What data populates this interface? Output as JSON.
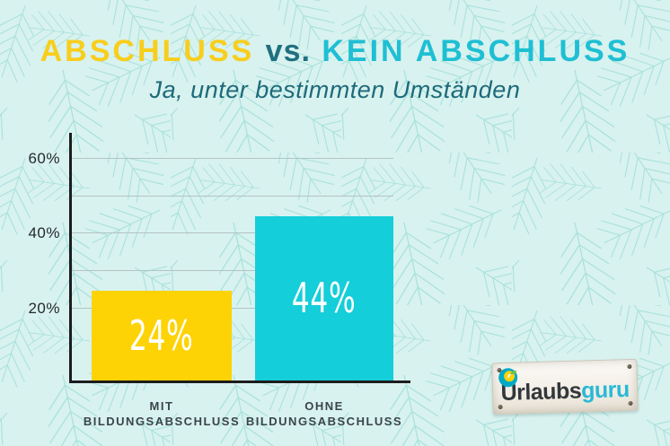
{
  "header": {
    "title_part1": "ABSCHLUSS",
    "title_part2": "vs.",
    "title_part3": "KEIN ABSCHLUSS",
    "subtitle": "Ja, unter bestimmten Umständen"
  },
  "chart_data": {
    "type": "bar",
    "title": "ABSCHLUSS vs. KEIN ABSCHLUSS",
    "subtitle": "Ja, unter bestimmten Umständen",
    "categories": [
      "MIT BILDUNGSABSCHLUSS",
      "OHNE BILDUNGSABSCHLUSS"
    ],
    "values": [
      24,
      44
    ],
    "value_labels": [
      "24%",
      "44%"
    ],
    "unit": "%",
    "ylim": [
      0,
      65
    ],
    "yticks": [
      {
        "value": 20,
        "label": "20%"
      },
      {
        "value": 40,
        "label": "40%"
      },
      {
        "value": 60,
        "label": "60%"
      }
    ],
    "grid_values": [
      20,
      30,
      40,
      50,
      60
    ],
    "grid": true,
    "legend_position": "none",
    "bar_colors": [
      "#fdd306",
      "#14ced9"
    ]
  },
  "logo": {
    "brand_dark": "Urlaubs",
    "brand_accent": "guru"
  },
  "colors": {
    "background": "#d8f2ef",
    "pattern_line": "#a9e2dd",
    "title_yellow": "#f8ce1c",
    "title_dark_teal": "#1f7080",
    "title_cyan": "#1fbfd3",
    "subtitle_teal": "#1d6a7a",
    "bar_yellow": "#fdd306",
    "bar_cyan": "#14ced9",
    "bar_value_text": "#ffffff",
    "axis": "#1c1c1c",
    "gridline": "#b2c4c3",
    "category_label": "#3a4549",
    "logo_dark": "#32373c",
    "logo_accent": "#29b9d6"
  }
}
